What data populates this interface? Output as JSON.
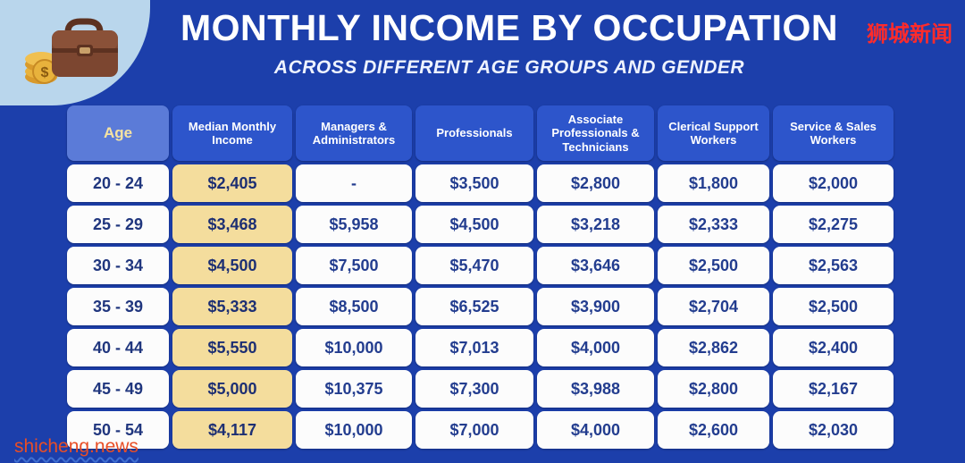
{
  "header": {
    "title": "MONTHLY INCOME BY OCCUPATION",
    "subtitle": "ACROSS DIFFERENT AGE GROUPS AND GENDER"
  },
  "watermarks": {
    "top_right": "狮城新闻",
    "bottom_left": "shicheng.news"
  },
  "colors": {
    "background": "#1c3fab",
    "header_cell": "#2d55cb",
    "age_header_cell": "#5b7bd8",
    "median_cell": "#f4dd9d",
    "data_cell": "#fcfcfc",
    "data_text": "#233d8f",
    "watermark_red": "#ff2b2b",
    "watermark_orange": "#e84e26",
    "blob": "#b9d6ec"
  },
  "icons": {
    "top_left": "briefcase-with-coins-icon"
  },
  "chart_data": {
    "type": "table",
    "title": "Monthly Income by Occupation across different age groups and gender",
    "columns": [
      "Age",
      "Median Monthly Income",
      "Managers & Administrators",
      "Professionals",
      "Associate Professionals & Technicians",
      "Clerical Support Workers",
      "Service & Sales Workers"
    ],
    "rows": [
      [
        "20 - 24",
        "$2,405",
        "-",
        "$3,500",
        "$2,800",
        "$1,800",
        "$2,000"
      ],
      [
        "25 - 29",
        "$3,468",
        "$5,958",
        "$4,500",
        "$3,218",
        "$2,333",
        "$2,275"
      ],
      [
        "30 - 34",
        "$4,500",
        "$7,500",
        "$5,470",
        "$3,646",
        "$2,500",
        "$2,563"
      ],
      [
        "35 - 39",
        "$5,333",
        "$8,500",
        "$6,525",
        "$3,900",
        "$2,704",
        "$2,500"
      ],
      [
        "40 - 44",
        "$5,550",
        "$10,000",
        "$7,013",
        "$4,000",
        "$2,862",
        "$2,400"
      ],
      [
        "45 - 49",
        "$5,000",
        "$10,375",
        "$7,300",
        "$3,988",
        "$2,800",
        "$2,167"
      ],
      [
        "50 - 54",
        "$4,117",
        "$10,000",
        "$7,000",
        "$4,000",
        "$2,600",
        "$2,030"
      ]
    ]
  }
}
